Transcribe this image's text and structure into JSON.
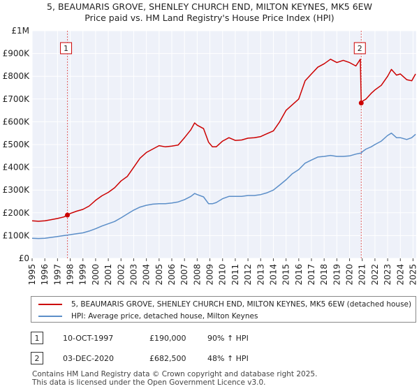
{
  "chart_data": {
    "type": "line",
    "title": "5, BEAUMARIS GROVE, SHENLEY CHURCH END, MILTON KEYNES, MK5 6EW",
    "subtitle": "Price paid vs. HM Land Registry's House Price Index (HPI)",
    "xlim": [
      1995,
      2025.25
    ],
    "ylim": [
      0,
      1000000
    ],
    "x_ticks": [
      1995,
      1996,
      1997,
      1998,
      1999,
      2000,
      2001,
      2002,
      2003,
      2004,
      2005,
      2006,
      2007,
      2008,
      2009,
      2010,
      2011,
      2012,
      2013,
      2014,
      2015,
      2016,
      2017,
      2018,
      2019,
      2020,
      2021,
      2022,
      2023,
      2024,
      2025
    ],
    "y_ticks": [
      {
        "value": 0,
        "label": "£0"
      },
      {
        "value": 100000,
        "label": "£100K"
      },
      {
        "value": 200000,
        "label": "£200K"
      },
      {
        "value": 300000,
        "label": "£300K"
      },
      {
        "value": 400000,
        "label": "£400K"
      },
      {
        "value": 500000,
        "label": "£500K"
      },
      {
        "value": 600000,
        "label": "£600K"
      },
      {
        "value": 700000,
        "label": "£700K"
      },
      {
        "value": 800000,
        "label": "£800K"
      },
      {
        "value": 900000,
        "label": "£900K"
      },
      {
        "value": 1000000,
        "label": "£1M"
      }
    ],
    "series": [
      {
        "name": "5, BEAUMARIS GROVE, SHENLEY CHURCH END, MILTON KEYNES, MK5 6EW (detached house)",
        "color": "#cc0000",
        "x": [
          1995,
          1995.5,
          1996,
          1996.5,
          1997,
          1997.5,
          1997.78,
          1998,
          1998.5,
          1999,
          1999.5,
          2000,
          2000.5,
          2001,
          2001.5,
          2002,
          2002.5,
          2003,
          2003.5,
          2004,
          2004.5,
          2005,
          2005.5,
          2006,
          2006.5,
          2007,
          2007.5,
          2007.8,
          2008,
          2008.5,
          2008.9,
          2009.2,
          2009.5,
          2010,
          2010.5,
          2011,
          2011.5,
          2012,
          2012.5,
          2013,
          2013.5,
          2014,
          2014.5,
          2015,
          2015.5,
          2016,
          2016.5,
          2017,
          2017.5,
          2018,
          2018.5,
          2019,
          2019.5,
          2020,
          2020.5,
          2020.85,
          2020.92,
          2021,
          2021.3,
          2021.7,
          2022,
          2022.5,
          2023,
          2023.3,
          2023.7,
          2024,
          2024.5,
          2024.9,
          2025.2
        ],
        "values": [
          165000,
          163000,
          165000,
          170000,
          175000,
          182000,
          190000,
          197000,
          207000,
          215000,
          230000,
          255000,
          275000,
          290000,
          310000,
          340000,
          360000,
          400000,
          440000,
          465000,
          480000,
          495000,
          490000,
          493000,
          498000,
          530000,
          565000,
          595000,
          585000,
          570000,
          510000,
          490000,
          490000,
          515000,
          530000,
          518000,
          520000,
          528000,
          530000,
          535000,
          548000,
          560000,
          600000,
          650000,
          675000,
          700000,
          780000,
          810000,
          840000,
          855000,
          875000,
          860000,
          870000,
          860000,
          845000,
          875000,
          682500,
          690000,
          700000,
          725000,
          740000,
          760000,
          800000,
          830000,
          805000,
          810000,
          785000,
          780000,
          810000
        ]
      },
      {
        "name": "HPI: Average price, detached house, Milton Keynes",
        "color": "#5b8ec8",
        "x": [
          1995,
          1995.5,
          1996,
          1996.5,
          1997,
          1997.5,
          1997.78,
          1998,
          1998.5,
          1999,
          1999.5,
          2000,
          2000.5,
          2001,
          2001.5,
          2002,
          2002.5,
          2003,
          2003.5,
          2004,
          2004.5,
          2005,
          2005.5,
          2006,
          2006.5,
          2007,
          2007.5,
          2007.8,
          2008,
          2008.5,
          2008.9,
          2009.2,
          2009.5,
          2010,
          2010.5,
          2011,
          2011.5,
          2012,
          2012.5,
          2013,
          2013.5,
          2014,
          2014.5,
          2015,
          2015.5,
          2016,
          2016.5,
          2017,
          2017.5,
          2018,
          2018.5,
          2019,
          2019.5,
          2020,
          2020.5,
          2020.85,
          2020.92,
          2021,
          2021.3,
          2021.7,
          2022,
          2022.5,
          2023,
          2023.3,
          2023.7,
          2024,
          2024.5,
          2024.9,
          2025.2
        ],
        "values": [
          88000,
          87000,
          88000,
          92000,
          96000,
          100000,
          102000,
          104000,
          108000,
          112000,
          120000,
          130000,
          142000,
          152000,
          162000,
          178000,
          195000,
          212000,
          225000,
          233000,
          238000,
          240000,
          240000,
          243000,
          248000,
          258000,
          272000,
          285000,
          280000,
          270000,
          240000,
          240000,
          245000,
          262000,
          272000,
          272000,
          272000,
          276000,
          276000,
          280000,
          288000,
          300000,
          322000,
          345000,
          372000,
          390000,
          418000,
          432000,
          445000,
          448000,
          452000,
          448000,
          448000,
          450000,
          458000,
          462000,
          462000,
          468000,
          480000,
          490000,
          500000,
          515000,
          540000,
          550000,
          530000,
          530000,
          522000,
          530000,
          545000
        ]
      }
    ],
    "sale_markers": [
      {
        "label": "1",
        "x": 1997.78,
        "value": 190000
      },
      {
        "label": "2",
        "x": 2020.92,
        "value": 682500
      }
    ],
    "legend_position": "bottom"
  },
  "legend": {
    "red_label": "5, BEAUMARIS GROVE, SHENLEY CHURCH END, MILTON KEYNES, MK5 6EW (detached house)",
    "blue_label": "HPI: Average price, detached house, Milton Keynes"
  },
  "annotations": [
    {
      "num": "1",
      "date": "10-OCT-1997",
      "price": "£190,000",
      "hpi": "90% ↑ HPI"
    },
    {
      "num": "2",
      "date": "03-DEC-2020",
      "price": "£682,500",
      "hpi": "48% ↑ HPI"
    }
  ],
  "footer": {
    "line1": "Contains HM Land Registry data © Crown copyright and database right 2025.",
    "line2": "This data is licensed under the Open Government Licence v3.0."
  }
}
